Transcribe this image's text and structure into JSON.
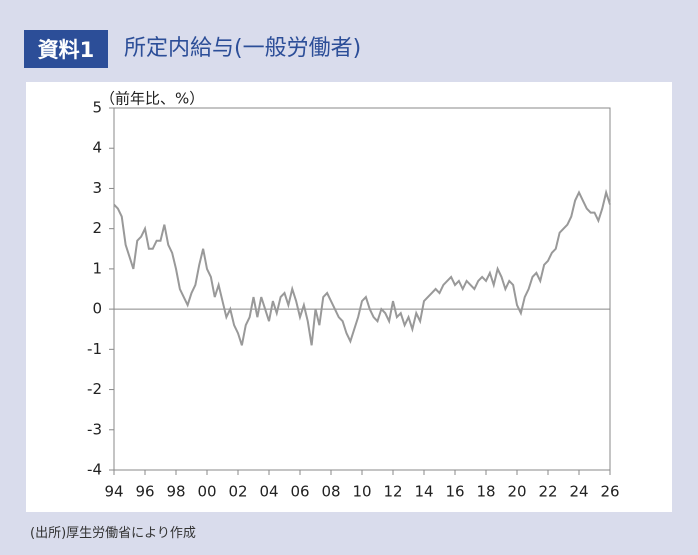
{
  "header": {
    "badge": "資料1",
    "title": "所定内給与(一般労働者)"
  },
  "chart_data": {
    "type": "line",
    "y_label": "（前年比、%）",
    "x": [
      1994.0,
      1994.25,
      1994.5,
      1994.75,
      1995.0,
      1995.25,
      1995.5,
      1995.75,
      1996.0,
      1996.25,
      1996.5,
      1996.75,
      1997.0,
      1997.25,
      1997.5,
      1997.75,
      1998.0,
      1998.25,
      1998.5,
      1998.75,
      1999.0,
      1999.25,
      1999.5,
      1999.75,
      2000.0,
      2000.25,
      2000.5,
      2000.75,
      2001.0,
      2001.25,
      2001.5,
      2001.75,
      2002.0,
      2002.25,
      2002.5,
      2002.75,
      2003.0,
      2003.25,
      2003.5,
      2003.75,
      2004.0,
      2004.25,
      2004.5,
      2004.75,
      2005.0,
      2005.25,
      2005.5,
      2005.75,
      2006.0,
      2006.25,
      2006.5,
      2006.75,
      2007.0,
      2007.25,
      2007.5,
      2007.75,
      2008.0,
      2008.25,
      2008.5,
      2008.75,
      2009.0,
      2009.25,
      2009.5,
      2009.75,
      2010.0,
      2010.25,
      2010.5,
      2010.75,
      2011.0,
      2011.25,
      2011.5,
      2011.75,
      2012.0,
      2012.25,
      2012.5,
      2012.75,
      2013.0,
      2013.25,
      2013.5,
      2013.75,
      2014.0,
      2014.25,
      2014.5,
      2014.75,
      2015.0,
      2015.25,
      2015.5,
      2015.75,
      2016.0,
      2016.25,
      2016.5,
      2016.75,
      2017.0,
      2017.25,
      2017.5,
      2017.75,
      2018.0,
      2018.25,
      2018.5,
      2018.75,
      2019.0,
      2019.25,
      2019.5,
      2019.75,
      2020.0,
      2020.25,
      2020.5,
      2020.75,
      2021.0,
      2021.25,
      2021.5,
      2021.75,
      2022.0,
      2022.25,
      2022.5,
      2022.75,
      2023.0,
      2023.25,
      2023.5,
      2023.75,
      2024.0,
      2024.25,
      2024.5,
      2024.75,
      2025.0,
      2025.25,
      2025.5,
      2025.75,
      2026.0
    ],
    "values": [
      2.6,
      2.5,
      2.3,
      1.6,
      1.3,
      1.0,
      1.7,
      1.8,
      2.0,
      1.5,
      1.5,
      1.7,
      1.7,
      2.1,
      1.6,
      1.4,
      1.0,
      0.5,
      0.3,
      0.1,
      0.4,
      0.6,
      1.1,
      1.5,
      1.0,
      0.8,
      0.3,
      0.6,
      0.2,
      -0.2,
      0.0,
      -0.4,
      -0.6,
      -0.9,
      -0.4,
      -0.2,
      0.3,
      -0.2,
      0.3,
      0.0,
      -0.3,
      0.2,
      -0.1,
      0.3,
      0.4,
      0.1,
      0.5,
      0.2,
      -0.2,
      0.1,
      -0.3,
      -0.9,
      0.0,
      -0.4,
      0.3,
      0.4,
      0.2,
      0.0,
      -0.2,
      -0.3,
      -0.6,
      -0.8,
      -0.5,
      -0.2,
      0.2,
      0.3,
      0.0,
      -0.2,
      -0.3,
      0.0,
      -0.1,
      -0.3,
      0.2,
      -0.2,
      -0.1,
      -0.4,
      -0.2,
      -0.5,
      -0.1,
      -0.3,
      0.2,
      0.3,
      0.4,
      0.5,
      0.4,
      0.6,
      0.7,
      0.8,
      0.6,
      0.7,
      0.5,
      0.7,
      0.6,
      0.5,
      0.7,
      0.8,
      0.7,
      0.9,
      0.6,
      1.0,
      0.8,
      0.5,
      0.7,
      0.6,
      0.1,
      -0.1,
      0.3,
      0.5,
      0.8,
      0.9,
      0.7,
      1.1,
      1.2,
      1.4,
      1.5,
      1.9,
      2.0,
      2.1,
      2.3,
      2.7,
      2.9,
      2.7,
      2.5,
      2.4,
      2.4,
      2.2,
      2.5,
      2.9,
      2.6
    ],
    "color": "#999999",
    "xlim": [
      1994,
      2026
    ],
    "ylim": [
      -4,
      5
    ],
    "xticks": [
      {
        "value": 1994,
        "label": "94"
      },
      {
        "value": 1996,
        "label": "96"
      },
      {
        "value": 1998,
        "label": "98"
      },
      {
        "value": 2000,
        "label": "00"
      },
      {
        "value": 2002,
        "label": "02"
      },
      {
        "value": 2004,
        "label": "04"
      },
      {
        "value": 2006,
        "label": "06"
      },
      {
        "value": 2008,
        "label": "08"
      },
      {
        "value": 2010,
        "label": "10"
      },
      {
        "value": 2012,
        "label": "12"
      },
      {
        "value": 2014,
        "label": "14"
      },
      {
        "value": 2016,
        "label": "16"
      },
      {
        "value": 2018,
        "label": "18"
      },
      {
        "value": 2020,
        "label": "20"
      },
      {
        "value": 2022,
        "label": "22"
      },
      {
        "value": 2024,
        "label": "24"
      },
      {
        "value": 2026,
        "label": "26"
      }
    ],
    "yticks": [
      -4,
      -3,
      -2,
      -1,
      0,
      1,
      2,
      3,
      4,
      5
    ],
    "grid": false
  },
  "source": "(出所)厚生労働省により作成"
}
